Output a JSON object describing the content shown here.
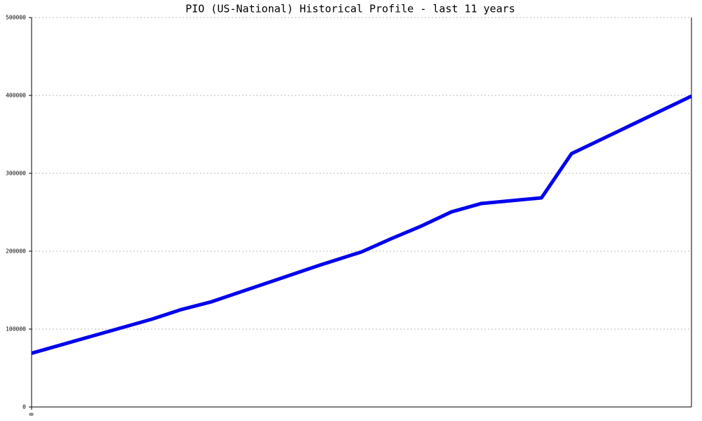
{
  "chart_data": {
    "type": "line",
    "title": "PIO (US-National) Historical Profile - last 11 years",
    "x": [
      0,
      2,
      2.5,
      3,
      4.8,
      5.5,
      6,
      6.5,
      7,
      7.5,
      8.5,
      9,
      11
    ],
    "series": [
      {
        "color": "#0000ee",
        "values": [
          69000,
          112600,
          125200,
          135100,
          182000,
          199100,
          216200,
          232400,
          250500,
          261300,
          268500,
          325200,
          399100
        ]
      }
    ],
    "xlim": [
      0,
      11
    ],
    "xticks": [
      0
    ],
    "ylim": [
      0,
      500000
    ],
    "yticks": [
      0,
      100000,
      200000,
      300000,
      400000,
      500000
    ],
    "grid": true
  }
}
